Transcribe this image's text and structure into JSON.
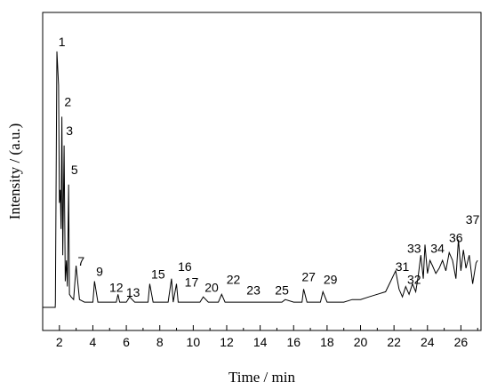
{
  "chart_data": {
    "type": "line",
    "title": "",
    "xlabel": "Time / min",
    "ylabel": "Intensity / (a.u.)",
    "xlim": [
      1,
      27.2
    ],
    "ylim": [
      0,
      100
    ],
    "y_ticks_shown": false,
    "x_ticks": [
      2,
      4,
      6,
      8,
      10,
      12,
      14,
      16,
      18,
      20,
      22,
      24,
      26
    ],
    "grid": false,
    "legend": "none",
    "line_color": "#000000",
    "series": [
      {
        "x": [
          1.0,
          1.75,
          1.76,
          1.85,
          1.95,
          2.0,
          2.05,
          2.1,
          2.15,
          2.2,
          2.28,
          2.35,
          2.42,
          2.48,
          2.55,
          2.6,
          2.7,
          2.85,
          3.0,
          3.2,
          3.5,
          3.8,
          4.0,
          4.1,
          4.3,
          4.8,
          5.4,
          5.5,
          5.6,
          6.0,
          6.2,
          6.5,
          7.0,
          7.3,
          7.4,
          7.6,
          8.0,
          8.5,
          8.7,
          8.8,
          9.0,
          9.1,
          9.3,
          9.8,
          10.4,
          10.6,
          10.9,
          11.5,
          11.7,
          11.9,
          12.5,
          13.2,
          13.6,
          14.0,
          14.8,
          15.3,
          15.5,
          16.0,
          16.5,
          16.6,
          16.8,
          17.3,
          17.6,
          17.75,
          18.0,
          18.5,
          19.0,
          19.5,
          20.0,
          20.5,
          21.0,
          21.5,
          21.8,
          22.1,
          22.3,
          22.5,
          22.7,
          22.9,
          23.1,
          23.3,
          23.45,
          23.6,
          23.75,
          23.85,
          24.0,
          24.15,
          24.3,
          24.5,
          24.7,
          24.9,
          25.1,
          25.3,
          25.5,
          25.7,
          25.85,
          26.0,
          26.15,
          26.3,
          26.5,
          26.7,
          26.9,
          27.0
        ],
        "y": [
          0,
          0,
          2,
          98,
          85,
          40,
          45,
          30,
          73,
          20,
          62,
          10,
          18,
          8,
          47,
          5,
          4,
          3,
          16,
          3,
          2,
          2,
          2,
          10,
          2,
          2,
          2,
          5,
          2,
          2,
          4,
          2,
          2,
          2,
          9,
          2,
          2,
          2,
          11,
          2,
          9,
          2,
          2,
          2,
          2,
          4,
          2,
          2,
          5,
          2,
          2,
          2,
          2,
          2,
          2,
          2,
          3,
          2,
          2,
          7,
          2,
          2,
          2,
          6,
          2,
          2,
          2,
          3,
          3,
          4,
          5,
          6,
          10,
          14,
          7,
          4,
          8,
          5,
          9,
          6,
          12,
          20,
          11,
          24,
          13,
          18,
          16,
          13,
          15,
          18,
          14,
          21,
          18,
          11,
          26,
          14,
          22,
          15,
          20,
          9,
          17,
          18
        ]
      }
    ],
    "peak_labels": [
      {
        "label": "1",
        "x": 2.15,
        "y": 100
      },
      {
        "label": "2",
        "x": 2.5,
        "y": 77
      },
      {
        "label": "3",
        "x": 2.6,
        "y": 66
      },
      {
        "label": "5",
        "x": 2.9,
        "y": 51
      },
      {
        "label": "7",
        "x": 3.3,
        "y": 16
      },
      {
        "label": "9",
        "x": 4.4,
        "y": 12
      },
      {
        "label": "12",
        "x": 5.4,
        "y": 6
      },
      {
        "label": "13",
        "x": 6.4,
        "y": 4
      },
      {
        "label": "15",
        "x": 7.9,
        "y": 11
      },
      {
        "label": "16",
        "x": 9.5,
        "y": 14
      },
      {
        "label": "17",
        "x": 9.9,
        "y": 8
      },
      {
        "label": "20",
        "x": 11.1,
        "y": 6
      },
      {
        "label": "22",
        "x": 12.4,
        "y": 9
      },
      {
        "label": "23",
        "x": 13.6,
        "y": 5
      },
      {
        "label": "25",
        "x": 15.3,
        "y": 5
      },
      {
        "label": "27",
        "x": 16.9,
        "y": 10
      },
      {
        "label": "29",
        "x": 18.2,
        "y": 9
      },
      {
        "label": "31",
        "x": 22.5,
        "y": 14
      },
      {
        "label": "32",
        "x": 23.2,
        "y": 9
      },
      {
        "label": "33",
        "x": 23.2,
        "y": 21
      },
      {
        "label": "34",
        "x": 24.6,
        "y": 21
      },
      {
        "label": "36",
        "x": 25.7,
        "y": 25
      },
      {
        "label": "37",
        "x": 26.7,
        "y": 32
      }
    ]
  }
}
